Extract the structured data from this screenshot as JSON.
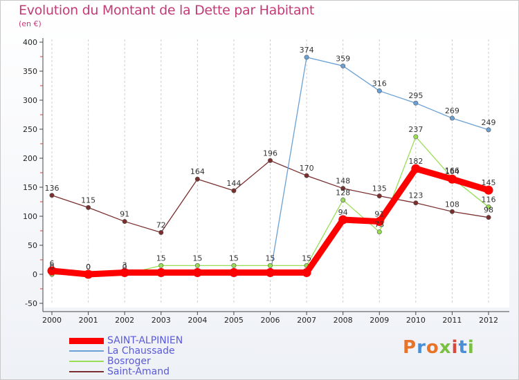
{
  "title": "Evolution du Montant de la Dette par Habitant",
  "subtitle": "(en €)",
  "logo": {
    "text": "Proxiti",
    "colors": [
      "#e8742a",
      "#4a8fd6",
      "#e8742a",
      "#7bc043",
      "#d94a3a",
      "#4a8fd6",
      "#7bc043"
    ]
  },
  "chart_data": {
    "type": "line",
    "title": "Evolution du Montant de la Dette par Habitant",
    "subtitle": "(en €)",
    "xlabel": "",
    "ylabel": "",
    "ylim": [
      -50,
      400
    ],
    "yticks": [
      -50,
      0,
      50,
      100,
      150,
      200,
      250,
      300,
      350,
      400
    ],
    "x": [
      "2000",
      "2001",
      "2002",
      "2003",
      "2004",
      "2005",
      "2006",
      "2007",
      "2008",
      "2009",
      "2010",
      "2011",
      "2012"
    ],
    "grid": "vertical",
    "legend_position": "bottom-left",
    "series": [
      {
        "name": "SAINT-ALPINIEN",
        "color": "#ff0000",
        "style": "thick",
        "values": [
          6,
          0,
          3,
          3,
          3,
          3,
          3,
          3,
          94,
          91,
          182,
          164,
          145
        ],
        "labels": [
          "6",
          "0",
          "3",
          "",
          "",
          "",
          "",
          "",
          "94",
          "91",
          "182",
          "164",
          "145"
        ]
      },
      {
        "name": "La Chaussade",
        "color": "#6aa0d4",
        "style": "thin",
        "values": [
          0,
          0,
          0,
          0,
          0,
          0,
          0,
          374,
          359,
          316,
          295,
          269,
          249
        ],
        "labels": [
          "0",
          "0",
          "0",
          "",
          "",
          "",
          "",
          "374",
          "359",
          "316",
          "295",
          "269",
          "249"
        ]
      },
      {
        "name": "Bosroger",
        "color": "#99dd55",
        "style": "thin",
        "values": [
          0,
          0,
          0,
          15,
          15,
          15,
          15,
          15,
          128,
          73,
          237,
          166,
          116
        ],
        "labels": [
          "",
          "",
          "",
          "15",
          "15",
          "15",
          "15",
          "15",
          "128",
          "73",
          "237",
          "166",
          "116"
        ]
      },
      {
        "name": "Saint-Amand",
        "color": "#7a2e2e",
        "style": "thin",
        "values": [
          136,
          115,
          91,
          72,
          164,
          144,
          196,
          170,
          148,
          135,
          123,
          108,
          98
        ],
        "labels": [
          "136",
          "115",
          "91",
          "72",
          "164",
          "144",
          "196",
          "170",
          "148",
          "135",
          "123",
          "108",
          "98"
        ]
      }
    ]
  }
}
